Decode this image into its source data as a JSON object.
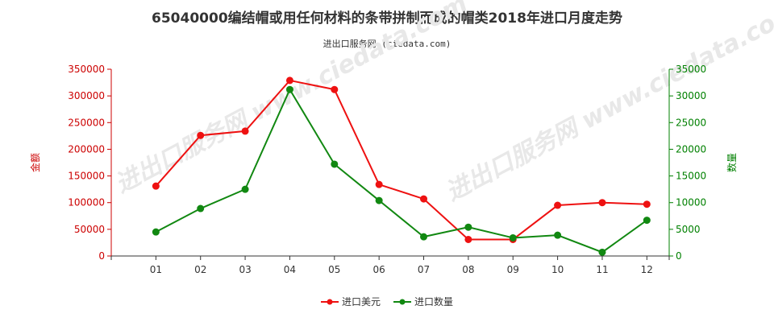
{
  "header": {
    "title": "65040000编结帽或用任何材料的条带拼制而成的帽类2018年进口月度走势",
    "subtitle": "进出口服务网 (ciedata.com)"
  },
  "watermark": "进出口服务网 www.ciedata.com",
  "colors": {
    "series1": "#ee1111",
    "series2": "#118811",
    "left_axis": "#cc0000",
    "right_axis": "#008000"
  },
  "chart_data": {
    "type": "line",
    "categories": [
      "01",
      "02",
      "03",
      "04",
      "05",
      "06",
      "07",
      "08",
      "09",
      "10",
      "11",
      "12"
    ],
    "series": [
      {
        "name": "进口美元",
        "axis": "left",
        "values": [
          131000,
          226000,
          234000,
          329000,
          312000,
          134000,
          107000,
          31000,
          31000,
          95000,
          100000,
          97000
        ]
      },
      {
        "name": "进口数量",
        "axis": "right",
        "values": [
          4500,
          8900,
          12500,
          31200,
          17200,
          10400,
          3600,
          5400,
          3400,
          3900,
          700,
          6700
        ]
      }
    ],
    "ylabel": "金额",
    "y2label": "数量",
    "ylim": [
      0,
      350000
    ],
    "y2lim": [
      0,
      35000
    ],
    "yticks": [
      "0",
      "50000",
      "100000",
      "150000",
      "200000",
      "250000",
      "300000",
      "350000"
    ],
    "y2ticks": [
      "0",
      "5000",
      "10000",
      "15000",
      "20000",
      "25000",
      "30000",
      "35000"
    ],
    "legend_position": "bottom-center",
    "grid": false
  }
}
